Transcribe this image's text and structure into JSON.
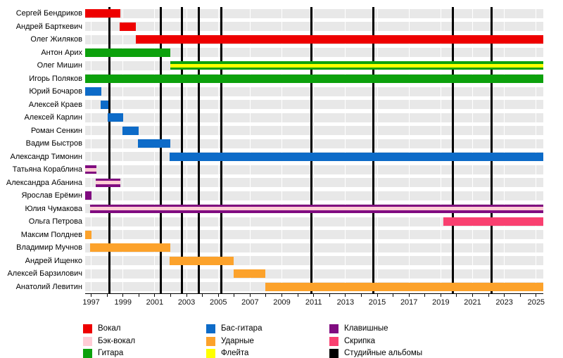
{
  "page": {
    "background": "#ffffff"
  },
  "chart_data": {
    "type": "gantt",
    "title": "",
    "x_axis": {
      "min": 1996.62,
      "max": 2025.45,
      "minor_tick_interval": 1,
      "tick_label_years": [
        1997,
        1999,
        2001,
        2003,
        2005,
        2007,
        2009,
        2011,
        2013,
        2015,
        2017,
        2019,
        2021,
        2023,
        2025
      ],
      "gridline_interval": 2
    },
    "roles": {
      "vocal": {
        "label": "Вокал",
        "color": "#EE0000"
      },
      "backing_vocal": {
        "label": "Бэк-вокал",
        "color": "#FFCCD5"
      },
      "guitar": {
        "label": "Гитара",
        "color": "#0CA10C"
      },
      "bass": {
        "label": "Бас-гитара",
        "color": "#0D6BC8"
      },
      "drums": {
        "label": "Ударные",
        "color": "#FCA22B"
      },
      "flute": {
        "label": "Флейта",
        "color": "#FFFF00"
      },
      "keyboards": {
        "label": "Клавишные",
        "color": "#800C80"
      },
      "violin": {
        "label": "Скрипка",
        "color": "#F94070"
      },
      "albums": {
        "label": "Студийные альбомы",
        "color": "#000000"
      }
    },
    "members": [
      {
        "name": "Сергей Бендриков",
        "bars": [
          {
            "start": 1996.62,
            "end": 1998.82,
            "role": "vocal"
          }
        ]
      },
      {
        "name": "Андрей Барткевич",
        "bars": [
          {
            "start": 1998.79,
            "end": 1999.8,
            "role": "vocal"
          }
        ]
      },
      {
        "name": "Олег Жиляков",
        "bars": [
          {
            "start": 1999.8,
            "end": 2025.45,
            "role": "vocal"
          }
        ]
      },
      {
        "name": "Антон Арих",
        "bars": [
          {
            "start": 1996.62,
            "end": 2001.96,
            "role": "guitar"
          }
        ]
      },
      {
        "name": "Олег Мишин",
        "bars": [
          {
            "start": 2001.96,
            "end": 2025.45,
            "role": "guitar",
            "stripe_role": "flute"
          }
        ]
      },
      {
        "name": "Игорь Поляков",
        "bars": [
          {
            "start": 1996.62,
            "end": 2025.45,
            "role": "guitar"
          }
        ]
      },
      {
        "name": "Юрий Бочаров",
        "bars": [
          {
            "start": 1996.62,
            "end": 1997.64,
            "role": "bass"
          }
        ]
      },
      {
        "name": "Алексей Краев",
        "bars": [
          {
            "start": 1997.61,
            "end": 1998.08,
            "role": "bass"
          }
        ]
      },
      {
        "name": "Алексей Карлин",
        "bars": [
          {
            "start": 1998.03,
            "end": 1999.01,
            "role": "bass"
          }
        ]
      },
      {
        "name": "Роман Сенкин",
        "bars": [
          {
            "start": 1998.98,
            "end": 1999.97,
            "role": "bass"
          }
        ]
      },
      {
        "name": "Вадим Быстров",
        "bars": [
          {
            "start": 1999.93,
            "end": 2001.96,
            "role": "bass"
          }
        ]
      },
      {
        "name": "Александр Тимонин",
        "bars": [
          {
            "start": 2001.92,
            "end": 2025.45,
            "role": "bass"
          }
        ]
      },
      {
        "name": "Татьяна Кораблина",
        "bars": [
          {
            "start": 1996.62,
            "end": 1997.35,
            "role": "keyboards",
            "stripe_role": "backing_vocal"
          }
        ]
      },
      {
        "name": "Александра Абанина",
        "bars": [
          {
            "start": 1997.29,
            "end": 1998.82,
            "role": "keyboards",
            "stripe_role": "backing_vocal"
          }
        ]
      },
      {
        "name": "Ярослав Ерёмин",
        "bars": [
          {
            "start": 1996.62,
            "end": 1997.02,
            "role": "keyboards"
          }
        ]
      },
      {
        "name": "Юлия Чумакова",
        "bars": [
          {
            "start": 1996.95,
            "end": 2025.45,
            "role": "keyboards",
            "stripe_role": "backing_vocal"
          }
        ]
      },
      {
        "name": "Ольга Петрова",
        "bars": [
          {
            "start": 2019.18,
            "end": 2025.45,
            "role": "violin"
          }
        ]
      },
      {
        "name": "Максим Полднев",
        "bars": [
          {
            "start": 1996.62,
            "end": 1997.02,
            "role": "drums"
          }
        ]
      },
      {
        "name": "Владимир Мучнов",
        "bars": [
          {
            "start": 1996.95,
            "end": 2001.96,
            "role": "drums"
          }
        ]
      },
      {
        "name": "Андрей Ищенко",
        "bars": [
          {
            "start": 2001.92,
            "end": 2005.95,
            "role": "drums"
          }
        ]
      },
      {
        "name": "Алексей Барзилович",
        "bars": [
          {
            "start": 2005.95,
            "end": 2007.94,
            "role": "drums"
          }
        ]
      },
      {
        "name": "Анатолий Левитин",
        "bars": [
          {
            "start": 2007.94,
            "end": 2025.45,
            "role": "drums"
          }
        ]
      }
    ],
    "album_lines": [
      1998.13,
      2001.37,
      2002.7,
      2003.78,
      2005.21,
      2010.87,
      2014.75,
      2019.74,
      2022.2
    ],
    "legend": {
      "order": [
        "vocal",
        "backing_vocal",
        "guitar",
        "bass",
        "drums",
        "flute",
        "keyboards",
        "violin",
        "albums"
      ],
      "columns": 3
    }
  },
  "layout_colors": {
    "row_stripe": "#e8e8e8",
    "axis_text": "#111111"
  }
}
